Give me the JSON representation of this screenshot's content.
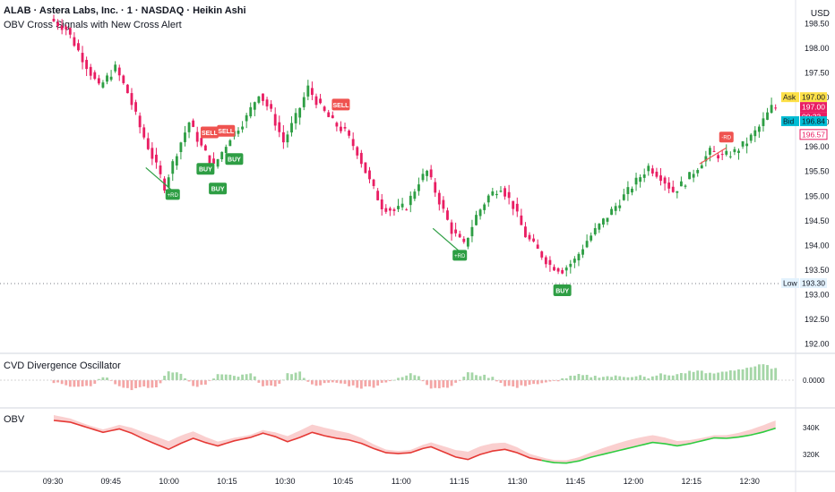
{
  "header": {
    "title": "ALAB · Astera Labs, Inc. · 1 · NASDAQ · Heikin Ashi",
    "indicator": "OBV Cross Signals with New Cross Alert",
    "currency": "USD"
  },
  "colors": {
    "up": "#26a69a",
    "upGreen": "#2e9e44",
    "down": "#e91e63",
    "buy": "#2e9e44",
    "sell": "#ef5350"
  },
  "price_tags": {
    "ask": {
      "label": "Ask",
      "value": "197.00"
    },
    "last": {
      "value": "197.00",
      "countdown": "00:33"
    },
    "bid": {
      "label": "Bid",
      "value": "196.84"
    },
    "prev": {
      "value": "196.57"
    },
    "low": {
      "label": "Low",
      "value": "193.30"
    }
  },
  "panes": {
    "cvd": {
      "title": "CVD Divergence Oscillator",
      "scale": "0.0000"
    },
    "obv": {
      "title": "OBV",
      "ticks": [
        "340K",
        "320K"
      ]
    }
  },
  "chart_data": {
    "type": "candlestick",
    "style": "Heikin Ashi",
    "x_ticks": [
      "09:30",
      "09:45",
      "10:00",
      "10:15",
      "10:30",
      "10:45",
      "11:00",
      "11:15",
      "11:30",
      "11:45",
      "12:00",
      "12:15",
      "12:30"
    ],
    "y_ticks": [
      "198.50",
      "198.00",
      "197.50",
      "197.00",
      "196.50",
      "196.00",
      "195.50",
      "195.00",
      "194.50",
      "194.00",
      "193.50",
      "193.00",
      "192.50",
      "192.00"
    ],
    "ylim": [
      191.9,
      198.8
    ],
    "price_path": [
      [
        0,
        198.6
      ],
      [
        4,
        198.4
      ],
      [
        8,
        197.8
      ],
      [
        12,
        197.2
      ],
      [
        16,
        197.6
      ],
      [
        19,
        197.1
      ],
      [
        22,
        196.4
      ],
      [
        25,
        195.8
      ],
      [
        28,
        195.2
      ],
      [
        31,
        195.9
      ],
      [
        34,
        196.5
      ],
      [
        37,
        196.0
      ],
      [
        40,
        195.6
      ],
      [
        44,
        196.2
      ],
      [
        48,
        196.6
      ],
      [
        51,
        197.1
      ],
      [
        54,
        196.7
      ],
      [
        57,
        196.1
      ],
      [
        60,
        196.6
      ],
      [
        63,
        197.2
      ],
      [
        66,
        196.8
      ],
      [
        69,
        196.5
      ],
      [
        72,
        196.3
      ],
      [
        75,
        195.9
      ],
      [
        78,
        195.3
      ],
      [
        81,
        194.8
      ],
      [
        84,
        194.7
      ],
      [
        87,
        194.8
      ],
      [
        90,
        195.3
      ],
      [
        92,
        195.5
      ],
      [
        95,
        194.9
      ],
      [
        98,
        194.3
      ],
      [
        101,
        194.0
      ],
      [
        104,
        194.6
      ],
      [
        107,
        195.0
      ],
      [
        110,
        195.2
      ],
      [
        113,
        194.8
      ],
      [
        116,
        194.2
      ],
      [
        119,
        193.9
      ],
      [
        122,
        193.6
      ],
      [
        125,
        193.5
      ],
      [
        128,
        193.7
      ],
      [
        131,
        194.1
      ],
      [
        134,
        194.4
      ],
      [
        137,
        194.7
      ],
      [
        140,
        195.0
      ],
      [
        143,
        195.3
      ],
      [
        146,
        195.6
      ],
      [
        149,
        195.4
      ],
      [
        152,
        195.1
      ],
      [
        155,
        195.3
      ],
      [
        158,
        195.6
      ],
      [
        161,
        195.9
      ],
      [
        164,
        195.8
      ],
      [
        167,
        195.9
      ],
      [
        170,
        196.1
      ],
      [
        173,
        196.4
      ],
      [
        176,
        196.8
      ]
    ],
    "signals": [
      {
        "label": "SELL",
        "type": "sell",
        "bar": 38
      },
      {
        "label": "SELL",
        "type": "sell",
        "bar": 42
      },
      {
        "label": "BUY",
        "type": "buy",
        "bar": 37
      },
      {
        "label": "BUY",
        "type": "buy",
        "bar": 40
      },
      {
        "label": "BUY",
        "type": "buy",
        "bar": 44
      },
      {
        "label": "SELL",
        "type": "sell",
        "bar": 70
      },
      {
        "label": "BUY",
        "type": "buy",
        "bar": 124
      }
    ],
    "divergences": [
      {
        "label": "+RD",
        "type": "bull",
        "bar": 29
      },
      {
        "label": "+RD",
        "type": "bull",
        "bar": 99
      },
      {
        "label": "-RD",
        "type": "bear",
        "bar": 164
      }
    ]
  }
}
